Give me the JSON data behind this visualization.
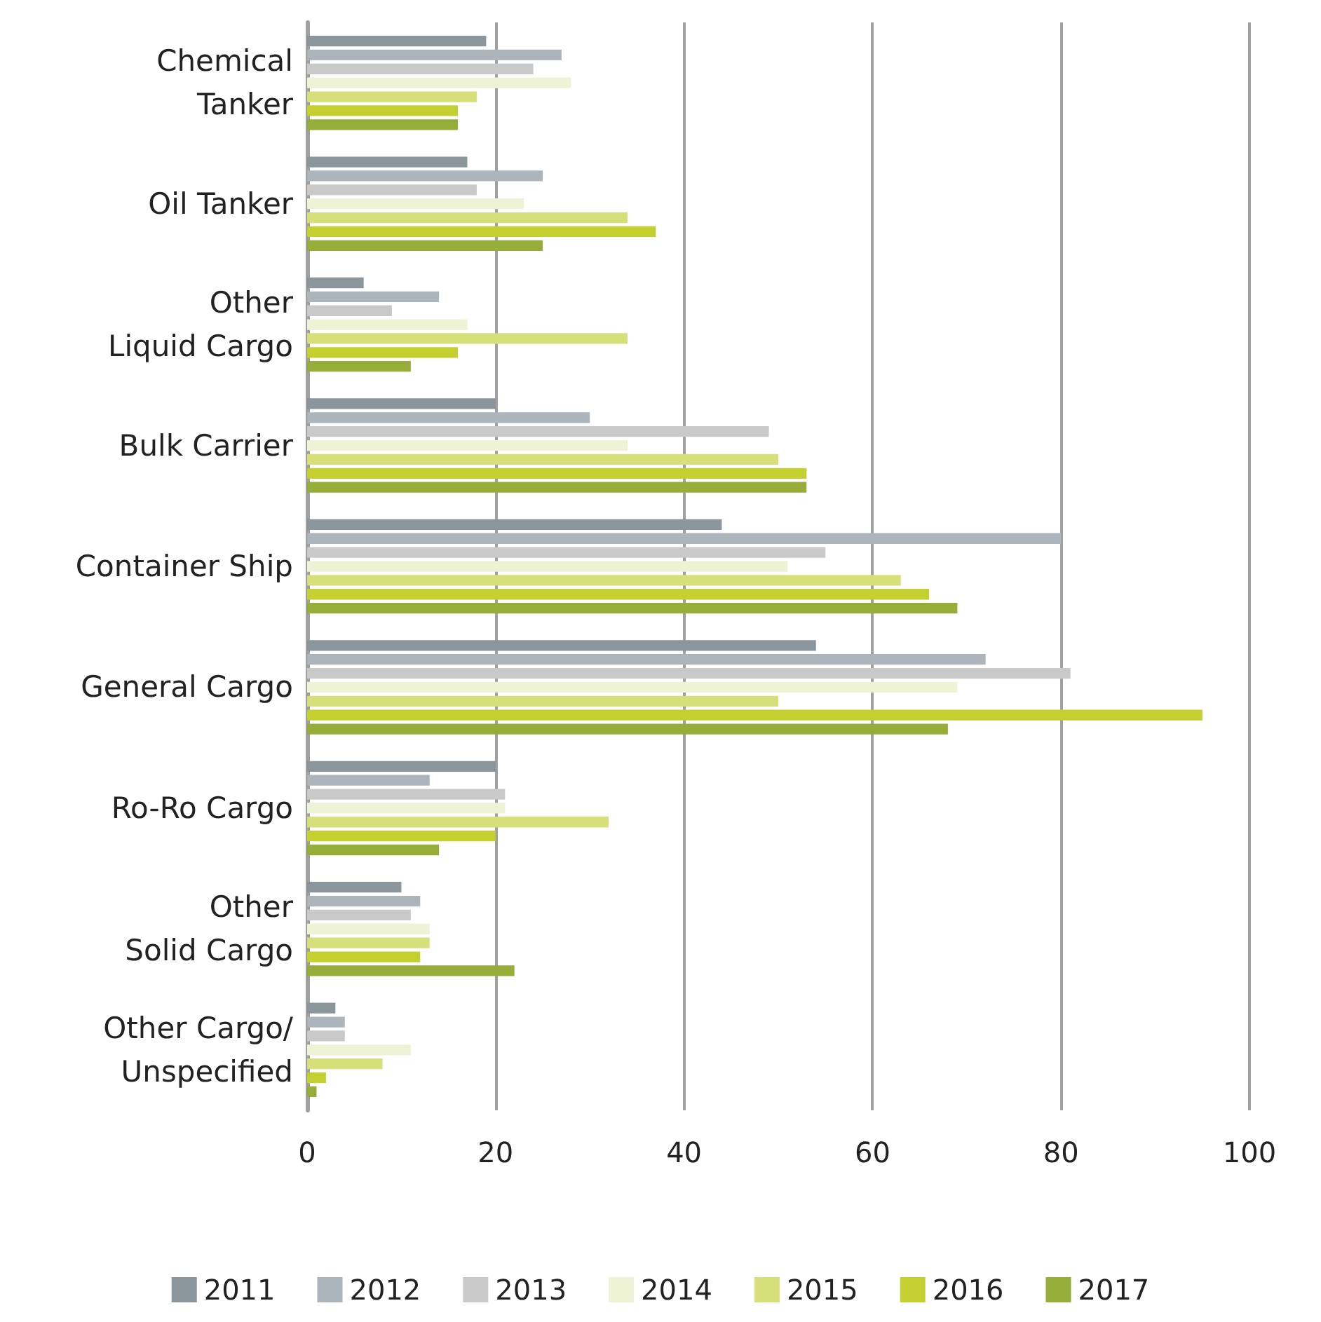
{
  "chart_data": {
    "type": "bar",
    "orientation": "horizontal",
    "categories": [
      "Chemical\nTanker",
      "Oil Tanker",
      "Other\nLiquid Cargo",
      "Bulk Carrier",
      "Container Ship",
      "General Cargo",
      "Ro-Ro Cargo",
      "Other\nSolid Cargo",
      "Other Cargo/\nUnspecified"
    ],
    "series": [
      {
        "name": "2011",
        "color": "#8a959c",
        "values": [
          19,
          17,
          6,
          20,
          44,
          54,
          20,
          10,
          3
        ]
      },
      {
        "name": "2012",
        "color": "#adb5bc",
        "values": [
          27,
          25,
          14,
          30,
          80,
          72,
          13,
          12,
          4
        ]
      },
      {
        "name": "2013",
        "color": "#c9c9c9",
        "values": [
          24,
          18,
          9,
          49,
          55,
          81,
          21,
          11,
          4
        ]
      },
      {
        "name": "2014",
        "color": "#eef3d5",
        "values": [
          28,
          23,
          17,
          34,
          51,
          69,
          21,
          13,
          11
        ]
      },
      {
        "name": "2015",
        "color": "#d7df7a",
        "values": [
          18,
          34,
          34,
          50,
          63,
          50,
          32,
          13,
          8
        ]
      },
      {
        "name": "2016",
        "color": "#c3d030",
        "values": [
          16,
          37,
          16,
          53,
          66,
          95,
          20,
          12,
          2
        ]
      },
      {
        "name": "2017",
        "color": "#97ad3a",
        "values": [
          16,
          25,
          11,
          53,
          69,
          68,
          14,
          22,
          1
        ]
      }
    ],
    "xlim": [
      0,
      100
    ],
    "xticks": [
      0,
      20,
      40,
      60,
      80,
      100
    ],
    "grid": "x",
    "legend": "bottom"
  }
}
